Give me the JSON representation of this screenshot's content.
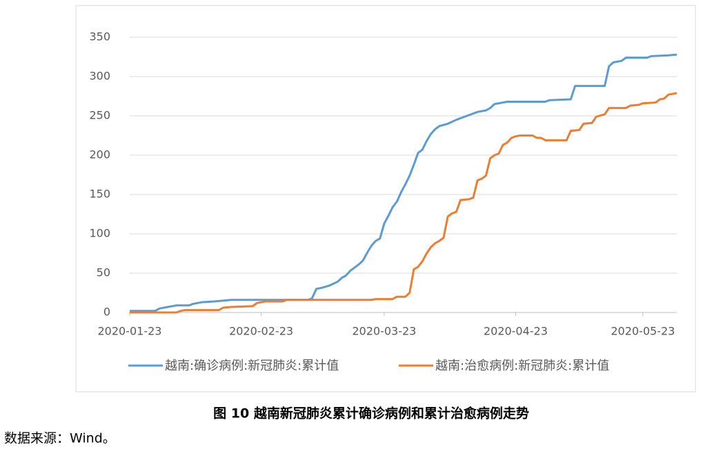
{
  "chart_data": {
    "type": "line",
    "title": "图 10 越南新冠肺炎累计确诊病例和累计治愈病例走势",
    "source": "数据来源：Wind。",
    "xlim": [
      "2020-01-23",
      "2020-05-31"
    ],
    "xticks": [
      "2020-01-23",
      "2020-02-23",
      "2020-03-23",
      "2020-04-23",
      "2020-05-23"
    ],
    "ylim": [
      0,
      350
    ],
    "yticks": [
      0,
      50,
      100,
      150,
      200,
      250,
      300,
      350
    ],
    "grid": true,
    "legend": "bottom",
    "series": [
      {
        "name": "越南:确诊病例:新冠肺炎:累计值",
        "color": "#5b9bd5",
        "x": [
          "2020-01-23",
          "2020-01-29",
          "2020-01-30",
          "2020-02-01",
          "2020-02-03",
          "2020-02-06",
          "2020-02-07",
          "2020-02-09",
          "2020-02-12",
          "2020-02-14",
          "2020-02-16",
          "2020-03-05",
          "2020-03-06",
          "2020-03-07",
          "2020-03-08",
          "2020-03-10",
          "2020-03-12",
          "2020-03-13",
          "2020-03-14",
          "2020-03-15",
          "2020-03-17",
          "2020-03-18",
          "2020-03-19",
          "2020-03-20",
          "2020-03-21",
          "2020-03-22",
          "2020-03-23",
          "2020-03-24",
          "2020-03-25",
          "2020-03-26",
          "2020-03-27",
          "2020-03-28",
          "2020-03-29",
          "2020-03-30",
          "2020-03-31",
          "2020-04-01",
          "2020-04-02",
          "2020-04-03",
          "2020-04-04",
          "2020-04-05",
          "2020-04-07",
          "2020-04-09",
          "2020-04-11",
          "2020-04-12",
          "2020-04-14",
          "2020-04-16",
          "2020-04-17",
          "2020-04-18",
          "2020-04-21",
          "2020-04-30",
          "2020-05-01",
          "2020-05-06",
          "2020-05-07",
          "2020-05-14",
          "2020-05-15",
          "2020-05-16",
          "2020-05-18",
          "2020-05-19",
          "2020-05-24",
          "2020-05-25",
          "2020-05-29",
          "2020-05-31"
        ],
        "values": [
          2,
          2,
          5,
          7,
          9,
          9,
          11,
          13,
          14,
          15,
          16,
          16,
          18,
          30,
          31,
          34,
          39,
          44,
          47,
          53,
          61,
          66,
          76,
          85,
          91,
          94,
          113,
          123,
          134,
          141,
          153,
          163,
          174,
          188,
          203,
          207,
          218,
          227,
          233,
          237,
          240,
          245,
          249,
          251,
          255,
          257,
          260,
          265,
          268,
          268,
          270,
          271,
          288,
          288,
          313,
          318,
          320,
          324,
          324,
          326,
          327,
          328
        ]
      },
      {
        "name": "越南:治愈病例:新冠肺炎:累计值",
        "color": "#ed7d31",
        "x": [
          "2020-01-23",
          "2020-02-03",
          "2020-02-04",
          "2020-02-05",
          "2020-02-13",
          "2020-02-14",
          "2020-02-16",
          "2020-02-21",
          "2020-02-22",
          "2020-02-24",
          "2020-02-28",
          "2020-02-29",
          "2020-03-20",
          "2020-03-21",
          "2020-03-25",
          "2020-03-26",
          "2020-03-28",
          "2020-03-29",
          "2020-03-30",
          "2020-03-31",
          "2020-04-01",
          "2020-04-02",
          "2020-04-03",
          "2020-04-04",
          "2020-04-05",
          "2020-04-06",
          "2020-04-07",
          "2020-04-08",
          "2020-04-09",
          "2020-04-10",
          "2020-04-12",
          "2020-04-13",
          "2020-04-14",
          "2020-04-15",
          "2020-04-16",
          "2020-04-17",
          "2020-04-18",
          "2020-04-19",
          "2020-04-20",
          "2020-04-21",
          "2020-04-22",
          "2020-04-23",
          "2020-04-24",
          "2020-04-27",
          "2020-04-28",
          "2020-04-29",
          "2020-04-30",
          "2020-05-05",
          "2020-05-06",
          "2020-05-08",
          "2020-05-09",
          "2020-05-11",
          "2020-05-12",
          "2020-05-14",
          "2020-05-15",
          "2020-05-19",
          "2020-05-20",
          "2020-05-22",
          "2020-05-23",
          "2020-05-26",
          "2020-05-27",
          "2020-05-28",
          "2020-05-29",
          "2020-05-30",
          "2020-05-31"
        ],
        "values": [
          0,
          0,
          2,
          3,
          3,
          6,
          7,
          8,
          12,
          14,
          14,
          16,
          16,
          17,
          17,
          20,
          20,
          25,
          55,
          58,
          65,
          75,
          83,
          88,
          91,
          95,
          122,
          126,
          128,
          143,
          144,
          146,
          168,
          170,
          174,
          196,
          200,
          202,
          213,
          216,
          222,
          224,
          225,
          225,
          222,
          222,
          219,
          219,
          231,
          232,
          240,
          241,
          249,
          252,
          260,
          260,
          263,
          264,
          266,
          267,
          271,
          272,
          277,
          278,
          279
        ]
      }
    ]
  }
}
